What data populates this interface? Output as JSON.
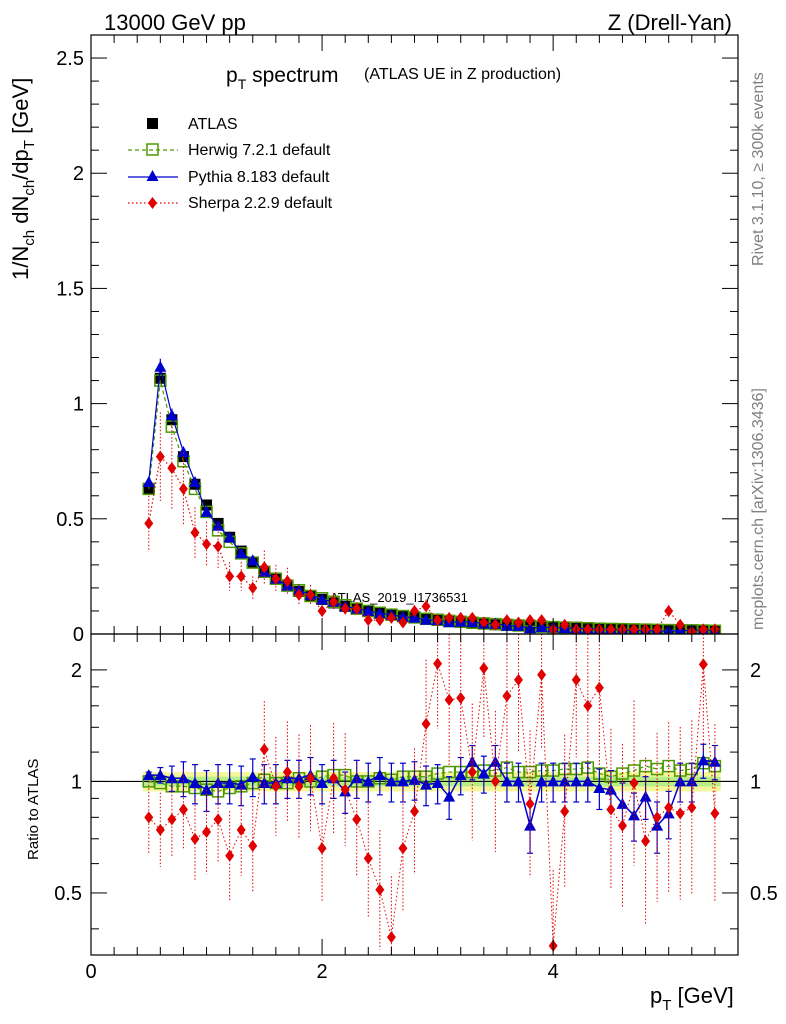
{
  "header": {
    "left": "13000 GeV pp",
    "right": "Z (Drell-Yan)"
  },
  "side_labels": {
    "rivet": "Rivet 3.1.10, ≥ 300k events",
    "mcplots": "mcplots.cern.ch [arXiv:1306.3436]"
  },
  "watermark": "ATLAS_2019_I1736531",
  "chart_data": [
    {
      "type": "scatter",
      "title_main": "p",
      "title_sub": "T",
      "title_rest": " spectrum",
      "subtitle": "(ATLAS UE in Z production)",
      "ylabel": "1/N_ch dN_ch/dp_T [GeV]",
      "xlim": [
        0,
        5.6
      ],
      "ylim": [
        0,
        2.6
      ],
      "yticks": [
        0,
        0.5,
        1,
        1.5,
        2,
        2.5
      ],
      "ytick_labels": [
        "0",
        "0.5",
        "1",
        "1.5",
        "2",
        "2.5"
      ],
      "legend": [
        "ATLAS",
        "Herwig 7.2.1 default",
        "Pythia 8.183 default",
        "Sherpa 2.2.9 default"
      ],
      "colors": {
        "ATLAS": "#000000",
        "Herwig": "#4c9900",
        "Pythia": "#0000cc",
        "Sherpa": "#e00000"
      },
      "x": [
        0.5,
        0.6,
        0.7,
        0.8,
        0.9,
        1.0,
        1.1,
        1.2,
        1.3,
        1.4,
        1.5,
        1.6,
        1.7,
        1.8,
        1.9,
        2.0,
        2.1,
        2.2,
        2.3,
        2.4,
        2.5,
        2.6,
        2.7,
        2.8,
        2.9,
        3.0,
        3.1,
        3.2,
        3.3,
        3.4,
        3.5,
        3.6,
        3.7,
        3.8,
        3.9,
        4.0,
        4.1,
        4.2,
        4.3,
        4.4,
        4.5,
        4.6,
        4.7,
        4.8,
        4.9,
        5.0,
        5.1,
        5.2,
        5.3,
        5.4
      ],
      "series": [
        {
          "name": "ATLAS",
          "values": [
            0.63,
            1.11,
            0.93,
            0.77,
            0.65,
            0.56,
            0.48,
            0.42,
            0.36,
            0.31,
            0.27,
            0.24,
            0.21,
            0.185,
            0.165,
            0.15,
            0.135,
            0.12,
            0.11,
            0.1,
            0.09,
            0.083,
            0.076,
            0.07,
            0.064,
            0.059,
            0.054,
            0.05,
            0.046,
            0.043,
            0.04,
            0.037,
            0.035,
            0.032,
            0.03,
            0.028,
            0.026,
            0.025,
            0.023,
            0.022,
            0.021,
            0.02,
            0.019,
            0.018,
            0.017,
            0.016,
            0.015,
            0.015,
            0.014,
            0.013
          ]
        },
        {
          "name": "Herwig 7.2.1 default",
          "values": [
            0.63,
            1.1,
            0.9,
            0.75,
            0.63,
            0.53,
            0.45,
            0.4,
            0.35,
            0.31,
            0.27,
            0.24,
            0.21,
            0.19,
            0.165,
            0.155,
            0.14,
            0.125,
            0.11,
            0.1,
            0.092,
            0.084,
            0.078,
            0.072,
            0.066,
            0.062,
            0.057,
            0.053,
            0.049,
            0.046,
            0.043,
            0.04,
            0.037,
            0.034,
            0.032,
            0.03,
            0.028,
            0.027,
            0.025,
            0.023,
            0.022,
            0.021,
            0.02,
            0.019,
            0.018,
            0.017,
            0.016,
            0.016,
            0.015,
            0.014
          ]
        },
        {
          "name": "Pythia 8.183 default",
          "values": [
            0.66,
            1.16,
            0.95,
            0.79,
            0.66,
            0.53,
            0.47,
            0.42,
            0.35,
            0.32,
            0.27,
            0.24,
            0.21,
            0.19,
            0.17,
            0.15,
            0.14,
            0.12,
            0.11,
            0.1,
            0.09,
            0.083,
            0.075,
            0.071,
            0.062,
            0.06,
            0.051,
            0.053,
            0.052,
            0.045,
            0.045,
            0.036,
            0.035,
            0.025,
            0.03,
            0.028,
            0.026,
            0.025,
            0.023,
            0.022,
            0.021,
            0.017,
            0.015,
            0.016,
            0.013,
            0.013,
            0.014,
            0.016,
            0.017,
            0.015
          ]
        },
        {
          "name": "Sherpa 2.2.9 default",
          "values": [
            0.48,
            0.77,
            0.72,
            0.63,
            0.44,
            0.39,
            0.38,
            0.25,
            0.25,
            0.2,
            0.29,
            0.24,
            0.23,
            0.17,
            0.17,
            0.1,
            0.14,
            0.11,
            0.11,
            0.06,
            0.06,
            0.07,
            0.05,
            0.1,
            0.12,
            0.06,
            0.07,
            0.07,
            0.07,
            0.05,
            0.04,
            0.06,
            0.05,
            0.06,
            0.06,
            0.02,
            0.04,
            0.02,
            0.02,
            0.02,
            0.02,
            0.02,
            0.02,
            0.02,
            0.02,
            0.1,
            0.04,
            0.01,
            0.02,
            0.02
          ]
        }
      ]
    },
    {
      "type": "scatter",
      "ylabel": "Ratio to ATLAS",
      "xlabel_main": "p",
      "xlabel_sub": "T",
      "xlabel_rest": " [GeV]",
      "xlim": [
        0,
        5.6
      ],
      "ylim": [
        0.34,
        2.5
      ],
      "yticks": [
        0.5,
        1,
        2
      ],
      "ytick_labels": [
        "0.5",
        "1",
        "2"
      ],
      "xticks": [
        0,
        2,
        4
      ],
      "xtick_labels": [
        "0",
        "2",
        "4"
      ],
      "band": {
        "inner": 0.03,
        "outer": 0.06
      },
      "x": [
        0.5,
        0.6,
        0.7,
        0.8,
        0.9,
        1.0,
        1.1,
        1.2,
        1.3,
        1.4,
        1.5,
        1.6,
        1.7,
        1.8,
        1.9,
        2.0,
        2.1,
        2.2,
        2.3,
        2.4,
        2.5,
        2.6,
        2.7,
        2.8,
        2.9,
        3.0,
        3.1,
        3.2,
        3.3,
        3.4,
        3.5,
        3.6,
        3.7,
        3.8,
        3.9,
        4.0,
        4.1,
        4.2,
        4.3,
        4.4,
        4.5,
        4.6,
        4.7,
        4.8,
        4.9,
        5.0,
        5.1,
        5.2,
        5.3,
        5.4
      ],
      "series": [
        {
          "name": "Herwig",
          "values": [
            1.0,
            0.99,
            0.97,
            0.97,
            0.96,
            0.95,
            0.94,
            0.96,
            0.97,
            0.99,
            1.01,
            0.99,
            0.99,
            1.02,
            1.0,
            1.03,
            1.04,
            1.04,
            1.0,
            1.0,
            1.02,
            1.01,
            1.03,
            1.03,
            1.03,
            1.05,
            1.06,
            1.06,
            1.06,
            1.07,
            1.07,
            1.09,
            1.06,
            1.06,
            1.07,
            1.07,
            1.08,
            1.08,
            1.09,
            1.05,
            1.03,
            1.05,
            1.07,
            1.1,
            1.08,
            1.1,
            1.07,
            1.08,
            1.12,
            1.1
          ]
        },
        {
          "name": "Pythia",
          "values": [
            1.04,
            1.04,
            1.02,
            1.02,
            0.99,
            0.95,
            0.99,
            0.99,
            0.98,
            1.03,
            0.99,
            0.99,
            1.02,
            1.02,
            1.04,
            0.99,
            1.02,
            0.94,
            1.02,
            1.0,
            1.04,
            1.0,
            1.0,
            1.01,
            0.98,
            0.99,
            0.91,
            1.04,
            1.13,
            1.05,
            1.13,
            1.0,
            1.0,
            0.76,
            1.0,
            1.0,
            1.0,
            1.0,
            1.0,
            0.96,
            0.95,
            0.87,
            0.81,
            0.91,
            0.76,
            0.82,
            1.0,
            1.0,
            1.14,
            1.13
          ]
        },
        {
          "name": "Sherpa",
          "values": [
            0.8,
            0.74,
            0.79,
            0.84,
            0.7,
            0.73,
            0.79,
            0.63,
            0.74,
            0.67,
            1.22,
            0.97,
            1.06,
            0.97,
            1.02,
            0.66,
            1.02,
            0.95,
            0.79,
            0.62,
            0.51,
            0.38,
            0.66,
            0.83,
            1.43,
            2.08,
            1.66,
            1.68,
            1.06,
            2.02,
            1.0,
            1.7,
            1.88,
            0.87,
            1.94,
            0.36,
            0.83,
            1.88,
            1.6,
            1.79,
            0.84,
            0.76,
            0.99,
            0.69,
            0.8,
            0.85,
            0.82,
            0.85,
            2.07,
            0.82
          ]
        }
      ]
    }
  ]
}
